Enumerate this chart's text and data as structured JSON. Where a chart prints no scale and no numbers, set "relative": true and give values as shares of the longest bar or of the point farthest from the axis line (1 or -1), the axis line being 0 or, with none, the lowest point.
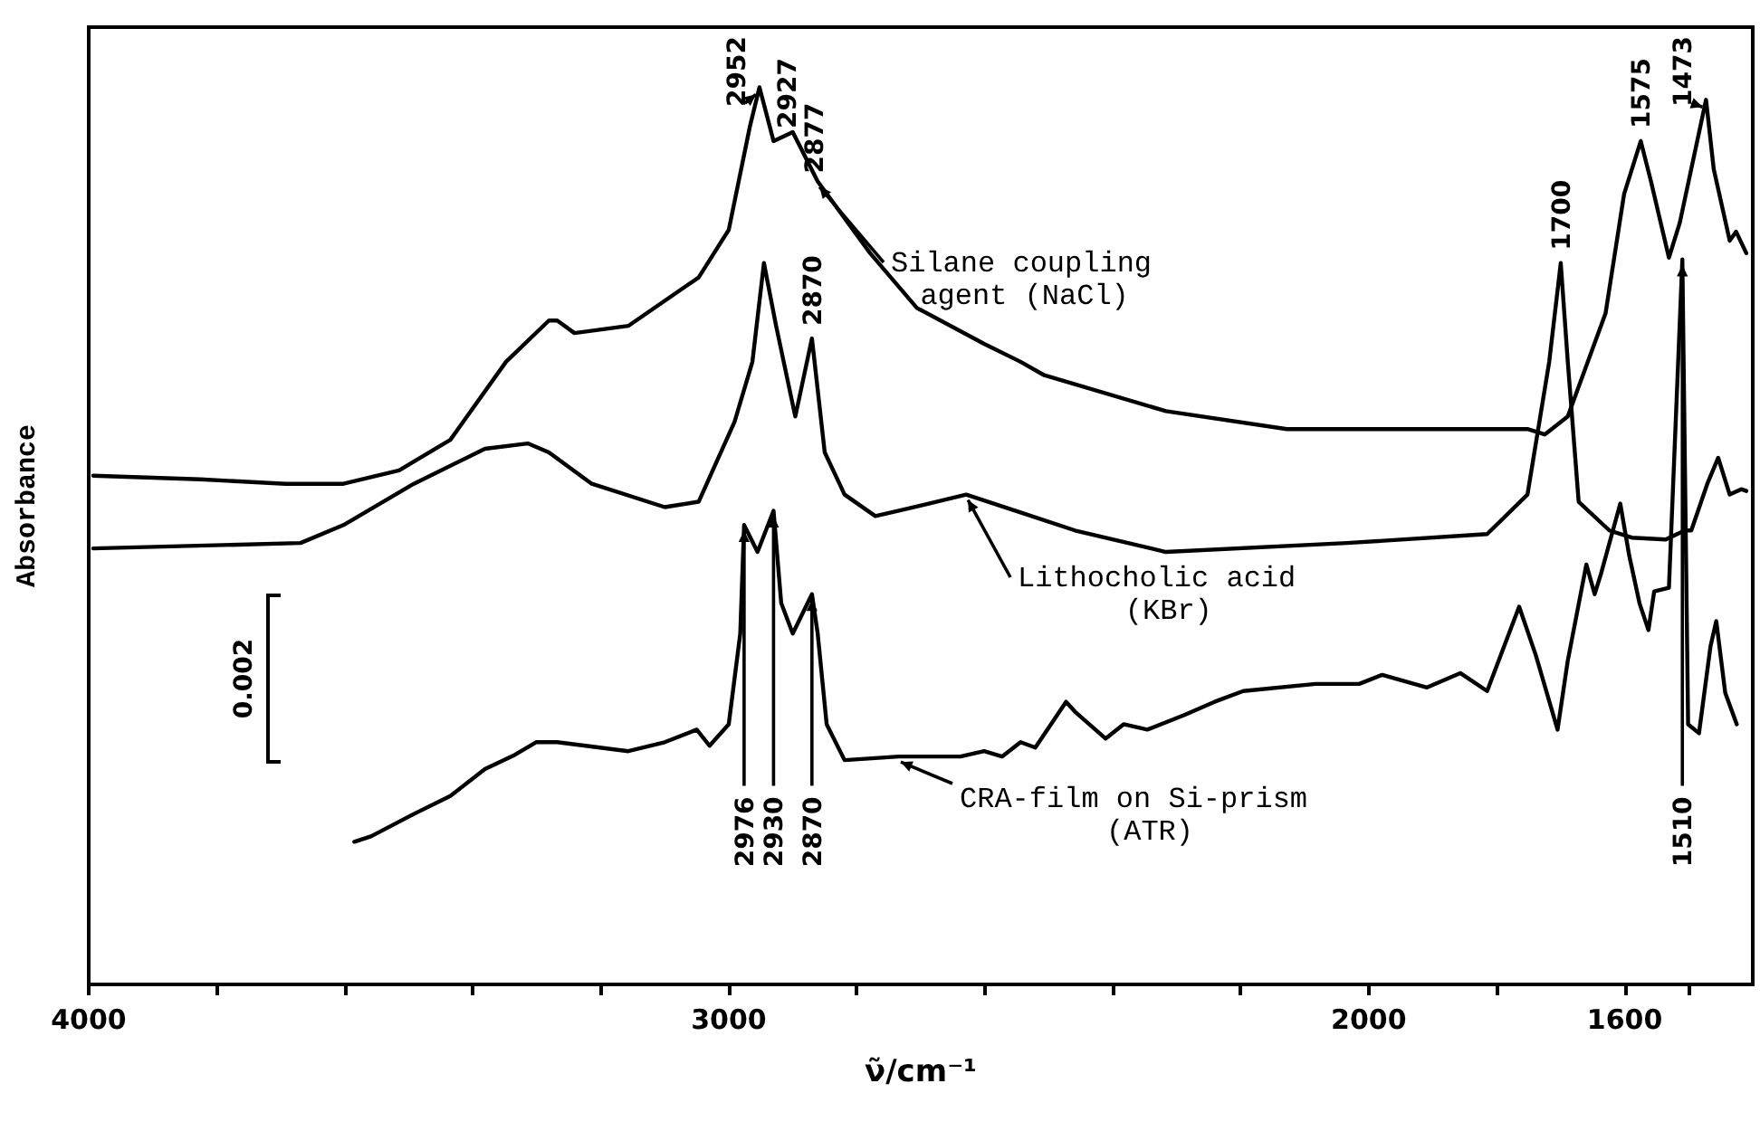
{
  "chart_data": {
    "type": "line",
    "relative": true,
    "xlabel": "ν̃/cm⁻¹",
    "ylabel": "Absorbance",
    "xlim": [
      4000,
      1400
    ],
    "xticks": [
      4000,
      {
        "value": 3800,
        "label": null
      },
      {
        "value": 3600,
        "label": null
      },
      {
        "value": 3400,
        "label": null
      },
      {
        "value": 3200,
        "label": null
      },
      3000,
      {
        "value": 2800,
        "label": null
      },
      {
        "value": 2600,
        "label": null
      },
      {
        "value": 2400,
        "label": null
      },
      {
        "value": 2200,
        "label": null
      },
      2000,
      {
        "value": 1800,
        "label": null
      },
      1600,
      {
        "value": 1500,
        "label": null
      }
    ],
    "grid": false,
    "legend": false,
    "marker": "none",
    "line_style": "solid",
    "series": [
      {
        "name": "Silane coupling agent (NaCl)",
        "color": "#000000",
        "x": [
          3993,
          3826,
          3692,
          3602,
          3515,
          3435,
          3348,
          3281,
          3268,
          3241,
          3157,
          3047,
          3000,
          2967,
          2952,
          2930,
          2900,
          2861,
          2779,
          2706,
          2601,
          2544,
          2507,
          2317,
          2128,
          1752,
          1725,
          1689,
          1630,
          1601,
          1575,
          1559,
          1531,
          1514,
          1473,
          1461,
          1436,
          1426,
          1410
        ],
        "values": [
          0.567,
          0.563,
          0.558,
          0.558,
          0.573,
          0.607,
          0.694,
          0.74,
          0.74,
          0.726,
          0.734,
          0.788,
          0.841,
          0.956,
          1.0,
          0.94,
          0.95,
          0.895,
          0.815,
          0.754,
          0.714,
          0.694,
          0.679,
          0.639,
          0.619,
          0.619,
          0.613,
          0.633,
          0.748,
          0.881,
          0.94,
          0.895,
          0.81,
          0.849,
          0.986,
          0.909,
          0.829,
          0.839,
          0.815
        ]
      },
      {
        "name": "Lithocholic acid (KBr)",
        "color": "#000000",
        "x": [
          3993,
          3669,
          3602,
          3492,
          3381,
          3314,
          3281,
          3214,
          3100,
          3047,
          2991,
          2963,
          2945,
          2926,
          2896,
          2870,
          2850,
          2819,
          2771,
          2734,
          2629,
          2544,
          2459,
          2317,
          2034,
          1815,
          1752,
          1718,
          1700,
          1689,
          1672,
          1624,
          1589,
          1536,
          1506,
          1496,
          1471,
          1454,
          1436,
          1418,
          1410
        ],
        "values": [
          0.486,
          0.492,
          0.512,
          0.558,
          0.597,
          0.603,
          0.593,
          0.558,
          0.532,
          0.538,
          0.627,
          0.694,
          0.804,
          0.734,
          0.633,
          0.72,
          0.593,
          0.546,
          0.522,
          0.528,
          0.546,
          0.526,
          0.506,
          0.482,
          0.492,
          0.502,
          0.546,
          0.694,
          0.804,
          0.694,
          0.538,
          0.506,
          0.498,
          0.496,
          0.506,
          0.506,
          0.558,
          0.587,
          0.546,
          0.552,
          0.55
        ]
      },
      {
        "name": "CRA-film on Si-prism (ATR)",
        "color": "#000000",
        "x": [
          3585,
          3559,
          3492,
          3435,
          3381,
          3334,
          3301,
          3268,
          3157,
          3100,
          3050,
          3030,
          3000,
          2982,
          2976,
          2955,
          2930,
          2918,
          2900,
          2870,
          2861,
          2847,
          2819,
          2734,
          2638,
          2601,
          2573,
          2544,
          2521,
          2473,
          2459,
          2411,
          2383,
          2346,
          2289,
          2241,
          2196,
          2083,
          2015,
          1979,
          1909,
          1857,
          1815,
          1765,
          1739,
          1705,
          1689,
          1660,
          1647,
          1637,
          1607,
          1593,
          1577,
          1563,
          1554,
          1531,
          1510,
          1501,
          1484,
          1466,
          1457,
          1443,
          1425
        ],
        "values": [
          0.159,
          0.165,
          0.19,
          0.21,
          0.24,
          0.256,
          0.27,
          0.27,
          0.26,
          0.27,
          0.284,
          0.266,
          0.29,
          0.391,
          0.512,
          0.482,
          0.528,
          0.425,
          0.391,
          0.435,
          0.391,
          0.29,
          0.25,
          0.254,
          0.254,
          0.26,
          0.254,
          0.27,
          0.264,
          0.315,
          0.304,
          0.274,
          0.29,
          0.284,
          0.3,
          0.315,
          0.327,
          0.335,
          0.335,
          0.345,
          0.331,
          0.347,
          0.327,
          0.421,
          0.367,
          0.284,
          0.361,
          0.468,
          0.435,
          0.458,
          0.536,
          0.478,
          0.425,
          0.395,
          0.438,
          0.442,
          0.808,
          0.29,
          0.28,
          0.377,
          0.405,
          0.325,
          0.29
        ]
      }
    ],
    "annotations": [
      {
        "text": "2952",
        "x": 2952,
        "y": 1.0
      },
      {
        "text": "2927",
        "x": 2927,
        "y": 0.94
      },
      {
        "text": "2877",
        "x": 2877,
        "y": 0.89
      },
      {
        "text": "1575",
        "x": 1575,
        "y": 0.94
      },
      {
        "text": "1473",
        "x": 1473,
        "y": 0.986
      },
      {
        "text": "2870",
        "x": 2870,
        "y": 0.72
      },
      {
        "text": "1700",
        "x": 1700,
        "y": 0.804
      },
      {
        "text": "2976",
        "x": 2976,
        "y": 0.512
      },
      {
        "text": "2930",
        "x": 2930,
        "y": 0.528
      },
      {
        "text": "2870",
        "x": 2870,
        "y": 0.435
      },
      {
        "text": "1510",
        "x": 1510,
        "y": 0.808
      },
      "0.002"
    ]
  }
}
